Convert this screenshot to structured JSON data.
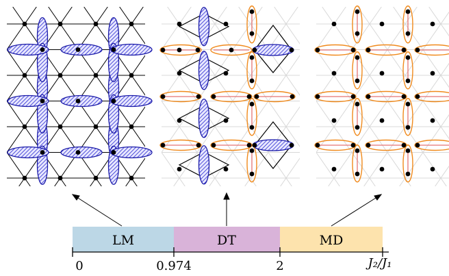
{
  "phases": [
    {
      "label": "LM",
      "color": "#bcd7e6"
    },
    {
      "label": "DT",
      "color": "#d9b3d9"
    },
    {
      "label": "MD",
      "color": "#fde3ad"
    }
  ],
  "ticks": [
    "0",
    "0.974",
    "2"
  ],
  "axis_label": "J₂/J₁",
  "colors": {
    "dimer_fill": "#3b3bd6",
    "dimer_stroke": "#1a1aa8",
    "outer_ellipse": "#f08a1c",
    "inner_bond": "#e57373",
    "faint_bond": "#d8d8d8",
    "lattice_line": "#000000"
  },
  "panels": [
    "lm-lattice-panel",
    "dt-lattice-panel",
    "md-lattice-panel"
  ]
}
